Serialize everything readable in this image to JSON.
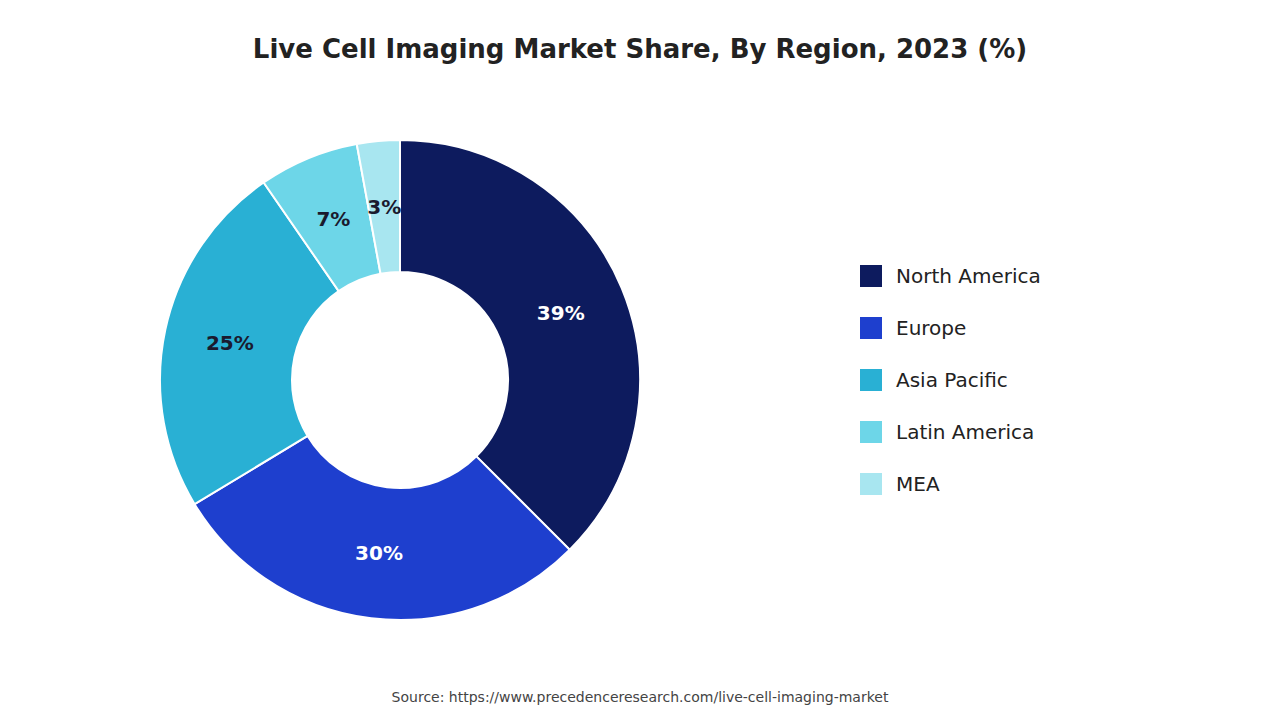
{
  "chart_data": {
    "type": "pie",
    "title": "Live Cell Imaging Market Share, By Region, 2023 (%)",
    "categories": [
      "North America",
      "Europe",
      "Asia Pacific",
      "Latin America",
      "MEA"
    ],
    "values": [
      39,
      30,
      25,
      7,
      3
    ],
    "value_labels": [
      "39%",
      "30%",
      "25%",
      "7%",
      "3%"
    ],
    "colors": [
      "#0d1b5e",
      "#1e3fce",
      "#29b0d4",
      "#6dd6e8",
      "#a8e6f0"
    ],
    "data_labels": true,
    "legend": "right",
    "source": "Source: https://www.precedenceresearch.com/live-cell-imaging-market"
  }
}
